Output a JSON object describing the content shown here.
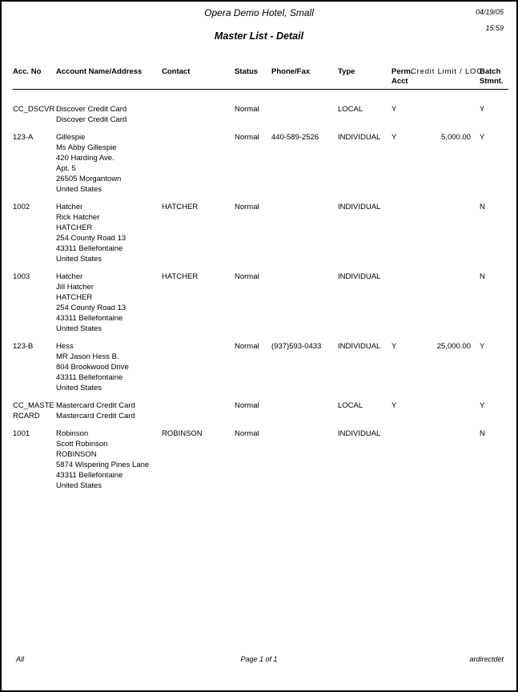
{
  "page": {
    "hotel_name": "Opera Demo Hotel, Small",
    "report_title": "Master List - Detail",
    "date": "04/19/05",
    "time": "15:59"
  },
  "table": {
    "headers": {
      "acc_no": "Acc. No",
      "name": "Account Name/Address",
      "contact": "Contact",
      "status": "Status",
      "phone": "Phone/Fax",
      "type": "Type",
      "perm_line1": "Perm.",
      "perm_line2": "Acct",
      "credit": "Credit Limit / LOC",
      "batch_line1": "Batch",
      "batch_line2": "Stmnt."
    },
    "rows": [
      {
        "acc_no_lines": [
          "CC_DSCVR"
        ],
        "name_lines": [
          "Discover Credit Card",
          "Discover Credit Card"
        ],
        "contact": "",
        "status": "Normal",
        "phone": "",
        "type": "LOCAL",
        "perm_acct": "Y",
        "credit_limit": "",
        "batch_stmnt": "Y"
      },
      {
        "acc_no_lines": [
          "123-A"
        ],
        "name_lines": [
          "Gillespie",
          "Ms Abby Gillespie",
          "420 Harding Ave.",
          "Apt. 5",
          "26505 Morgantown",
          "United States"
        ],
        "contact": "",
        "status": "Normal",
        "phone": "440-589-2526",
        "type": "INDIVIDUAL",
        "perm_acct": "Y",
        "credit_limit": "5,000.00",
        "batch_stmnt": "Y"
      },
      {
        "acc_no_lines": [
          "1002"
        ],
        "name_lines": [
          "Hatcher",
          "Rick Hatcher",
          "HATCHER",
          "254 County Road 13",
          "43311 Bellefontaine",
          "United States"
        ],
        "contact": "HATCHER",
        "status": "Normal",
        "phone": "",
        "type": "INDIVIDUAL",
        "perm_acct": "",
        "credit_limit": "",
        "batch_stmnt": "N"
      },
      {
        "acc_no_lines": [
          "1003"
        ],
        "name_lines": [
          "Hatcher",
          "Jill Hatcher",
          "HATCHER",
          "254 County Road 13",
          "43311 Bellefontaine",
          "United States"
        ],
        "contact": "HATCHER",
        "status": "Normal",
        "phone": "",
        "type": "INDIVIDUAL",
        "perm_acct": "",
        "credit_limit": "",
        "batch_stmnt": "N"
      },
      {
        "acc_no_lines": [
          "123-B"
        ],
        "name_lines": [
          "Hess",
          "MR Jason Hess B.",
          "804 Brookwood Drive",
          "43311 Bellefontaine",
          "United States"
        ],
        "contact": "",
        "status": "Normal",
        "phone": "(937)593-0433",
        "type": "INDIVIDUAL",
        "perm_acct": "Y",
        "credit_limit": "25,000.00",
        "batch_stmnt": "Y"
      },
      {
        "acc_no_lines": [
          "CC_MASTE",
          "RCARD"
        ],
        "name_lines": [
          "Mastercard Credit Card",
          "Mastercard Credit Card"
        ],
        "contact": "",
        "status": "Normal",
        "phone": "",
        "type": "LOCAL",
        "perm_acct": "Y",
        "credit_limit": "",
        "batch_stmnt": "Y"
      },
      {
        "acc_no_lines": [
          "1001"
        ],
        "name_lines": [
          "Robinson",
          "Scott Robinson",
          "ROBINSON",
          "5874 Wispering Pines Lane",
          "43311 Bellefontaine",
          "United States"
        ],
        "contact": "ROBINSON",
        "status": "Normal",
        "phone": "",
        "type": "INDIVIDUAL",
        "perm_acct": "",
        "credit_limit": "",
        "batch_stmnt": "N"
      }
    ]
  },
  "footer": {
    "left": "All",
    "center": "Page 1 of 1",
    "right": "ardirectdet"
  }
}
